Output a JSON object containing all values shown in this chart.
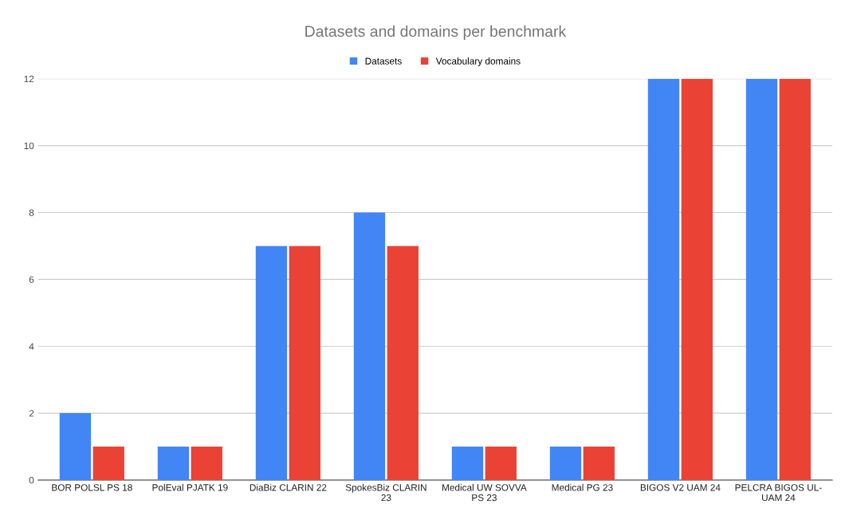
{
  "chart_data": {
    "type": "bar",
    "title": "Datasets and domains per benchmark",
    "categories": [
      "BOR POLSL PS 18",
      "PolEval PJATK 19",
      "DiaBiz CLARIN 22",
      "SpokesBiz CLARIN\n23",
      "Medical UW SOVVA\nPS 23",
      "Medical PG 23",
      "BIGOS V2 UAM 24",
      "PELCRA BIGOS UL-\nUAM 24"
    ],
    "series": [
      {
        "name": "Datasets",
        "color": "#4285f4",
        "values": [
          2,
          1,
          7,
          8,
          1,
          1,
          12,
          12
        ]
      },
      {
        "name": "Vocabulary domains",
        "color": "#ea4335",
        "values": [
          1,
          1,
          7,
          7,
          1,
          1,
          12,
          12
        ]
      }
    ],
    "ylim": [
      0,
      12
    ],
    "yticks": [
      0,
      2,
      4,
      6,
      8,
      10,
      12
    ],
    "grid": "y",
    "legend": "top"
  }
}
